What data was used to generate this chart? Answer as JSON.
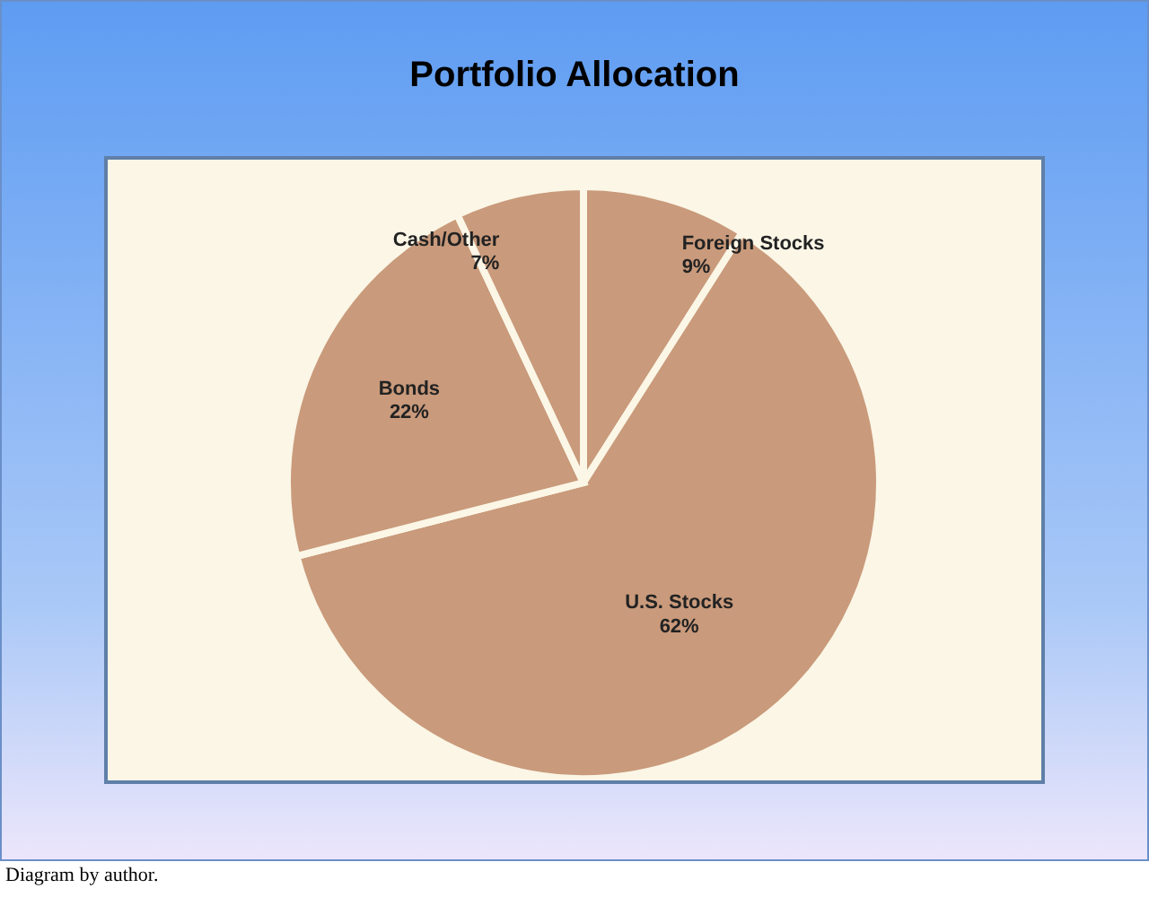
{
  "chart_data": {
    "type": "pie",
    "title": "Portfolio Allocation",
    "categories": [
      "Foreign Stocks",
      "U.S. Stocks",
      "Bonds",
      "Cash/Other"
    ],
    "values": [
      9,
      62,
      22,
      7
    ],
    "value_labels": [
      "9%",
      "62%",
      "22%",
      "7%"
    ],
    "colors": [
      "#c99a7b",
      "#c99a7b",
      "#c99a7b",
      "#c99a7b"
    ],
    "legend": false,
    "annotations": [
      "Diagram by author."
    ]
  }
}
